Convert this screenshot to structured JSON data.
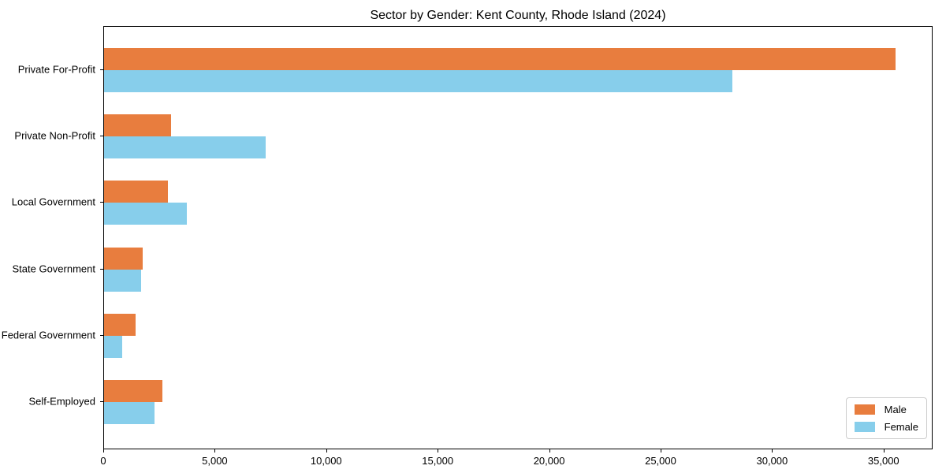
{
  "chart": {
    "title": "Sector by Gender: Kent County, Rhode Island (2024)"
  },
  "chart_data": {
    "type": "bar",
    "orientation": "horizontal",
    "title": "Sector by Gender: Kent County, Rhode Island (2024)",
    "xlabel": "",
    "ylabel": "",
    "categories": [
      "Private For-Profit",
      "Private Non-Profit",
      "Local Government",
      "State Government",
      "Federal Government",
      "Self-Employed"
    ],
    "series": [
      {
        "name": "Male",
        "color": "#e87d3e",
        "values": [
          35500,
          3000,
          2850,
          1750,
          1400,
          2600
        ]
      },
      {
        "name": "Female",
        "color": "#87ceeb",
        "values": [
          28200,
          7250,
          3700,
          1650,
          800,
          2250
        ]
      }
    ],
    "xlim": [
      0,
      37200
    ],
    "xticks": [
      0,
      5000,
      10000,
      15000,
      20000,
      25000,
      30000,
      35000
    ],
    "grid": false,
    "legend_position": "lower right",
    "axis_color": "#000000"
  }
}
